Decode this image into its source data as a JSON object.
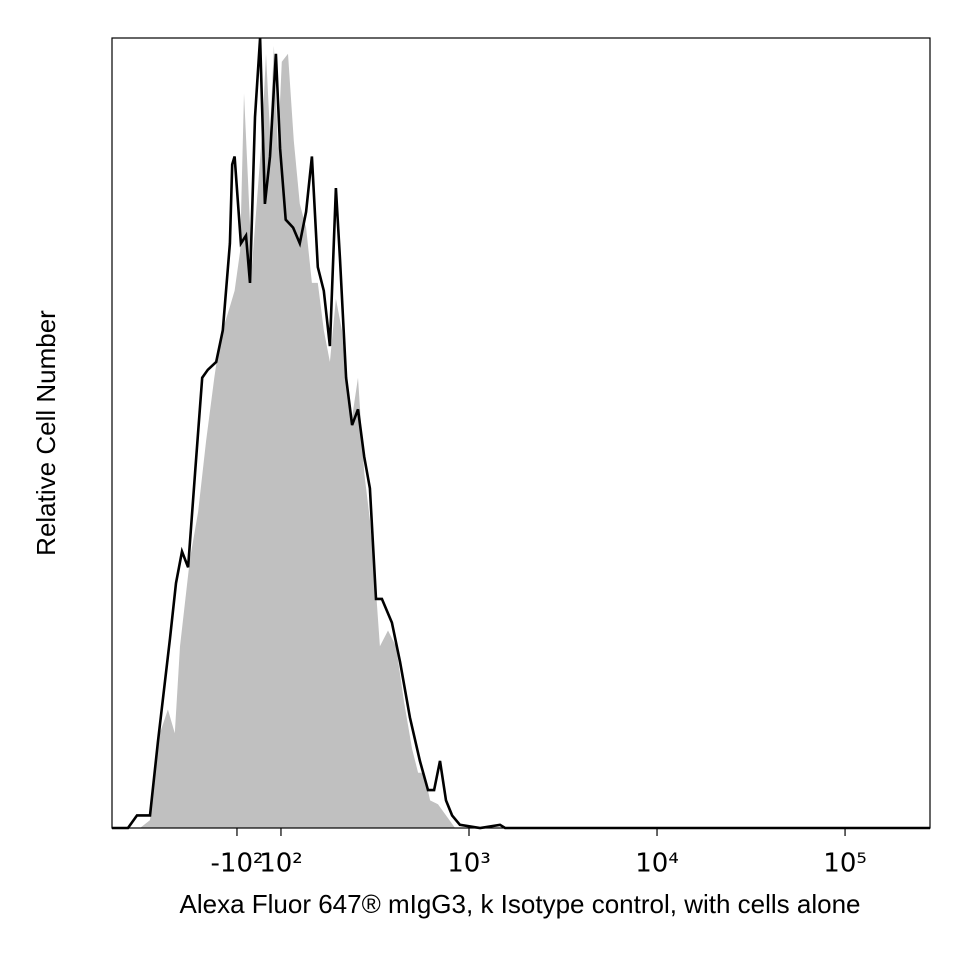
{
  "chart_data": {
    "type": "histogram-overlay",
    "x_label": "Alexa Fluor 647® mIgG3, k Isotype control, with cells alone",
    "y_label": "Relative Cell Number",
    "xscale": "biexponential",
    "xlim": [
      -462,
      283000
    ],
    "ylim": [
      0,
      100
    ],
    "xticks": [
      {
        "value": -100,
        "label": "-10²"
      },
      {
        "value": 100,
        "label": "10²"
      },
      {
        "value": 1000,
        "label": "10³"
      },
      {
        "value": 10000,
        "label": "10⁴"
      },
      {
        "value": 100000,
        "label": "10⁵"
      }
    ],
    "series": [
      {
        "color": "#c0c0c0",
        "filled": true,
        "x": [
          -462,
          -328,
          -290,
          -257,
          -233,
          -214,
          -201,
          -178,
          -161,
          -146,
          -132,
          -123,
          -109,
          -103,
          -86,
          -68,
          -50,
          -32,
          -5,
          14,
          32,
          50,
          68,
          86,
          101,
          109,
          117,
          126,
          136,
          146,
          157,
          169,
          182,
          196,
          211,
          227,
          239,
          257,
          277,
          297,
          320,
          336,
          371,
          409,
          451,
          498,
          536,
          577,
          621,
          684,
          755,
          843,
          283000
        ],
        "values": [
          0,
          0,
          1,
          12,
          15,
          12,
          23,
          34,
          40,
          49,
          57,
          62,
          66,
          68,
          73,
          93,
          82,
          71,
          81,
          88,
          98,
          88,
          99,
          86,
          97,
          98,
          87,
          79,
          76,
          69,
          69,
          63,
          59,
          67,
          63,
          54,
          52,
          57,
          45,
          39,
          30,
          23,
          25,
          23,
          16,
          10,
          7,
          7,
          3.5,
          3,
          1.6,
          0,
          0
        ]
      },
      {
        "color": "#000000",
        "filled": false,
        "x": [
          -462,
          -380,
          -340,
          -290,
          -263,
          -227,
          -211,
          -196,
          -182,
          -167,
          -153,
          -143,
          -129,
          -119,
          -109,
          -106,
          -103,
          -82,
          -59,
          -41,
          -18,
          5,
          27,
          50,
          77,
          96,
          106,
          116,
          126,
          136,
          146,
          157,
          169,
          182,
          196,
          206,
          222,
          239,
          257,
          277,
          297,
          320,
          344,
          389,
          430,
          485,
          548,
          605,
          652,
          701,
          755,
          813,
          895,
          1146,
          1462,
          1556,
          283000
        ],
        "values": [
          0,
          0,
          1.6,
          1.6,
          11,
          24,
          31,
          35,
          33,
          45,
          57,
          58,
          59,
          63,
          74,
          84,
          85,
          74,
          75,
          69,
          90,
          100,
          79,
          85,
          98,
          86,
          77,
          76,
          74,
          78,
          85,
          71,
          68,
          61,
          81,
          72,
          57,
          51,
          53,
          47,
          43,
          29,
          29,
          26,
          21,
          14,
          8.5,
          4.8,
          4.8,
          8.5,
          3.5,
          1.6,
          0.4,
          0,
          0.4,
          0,
          0
        ]
      }
    ]
  }
}
